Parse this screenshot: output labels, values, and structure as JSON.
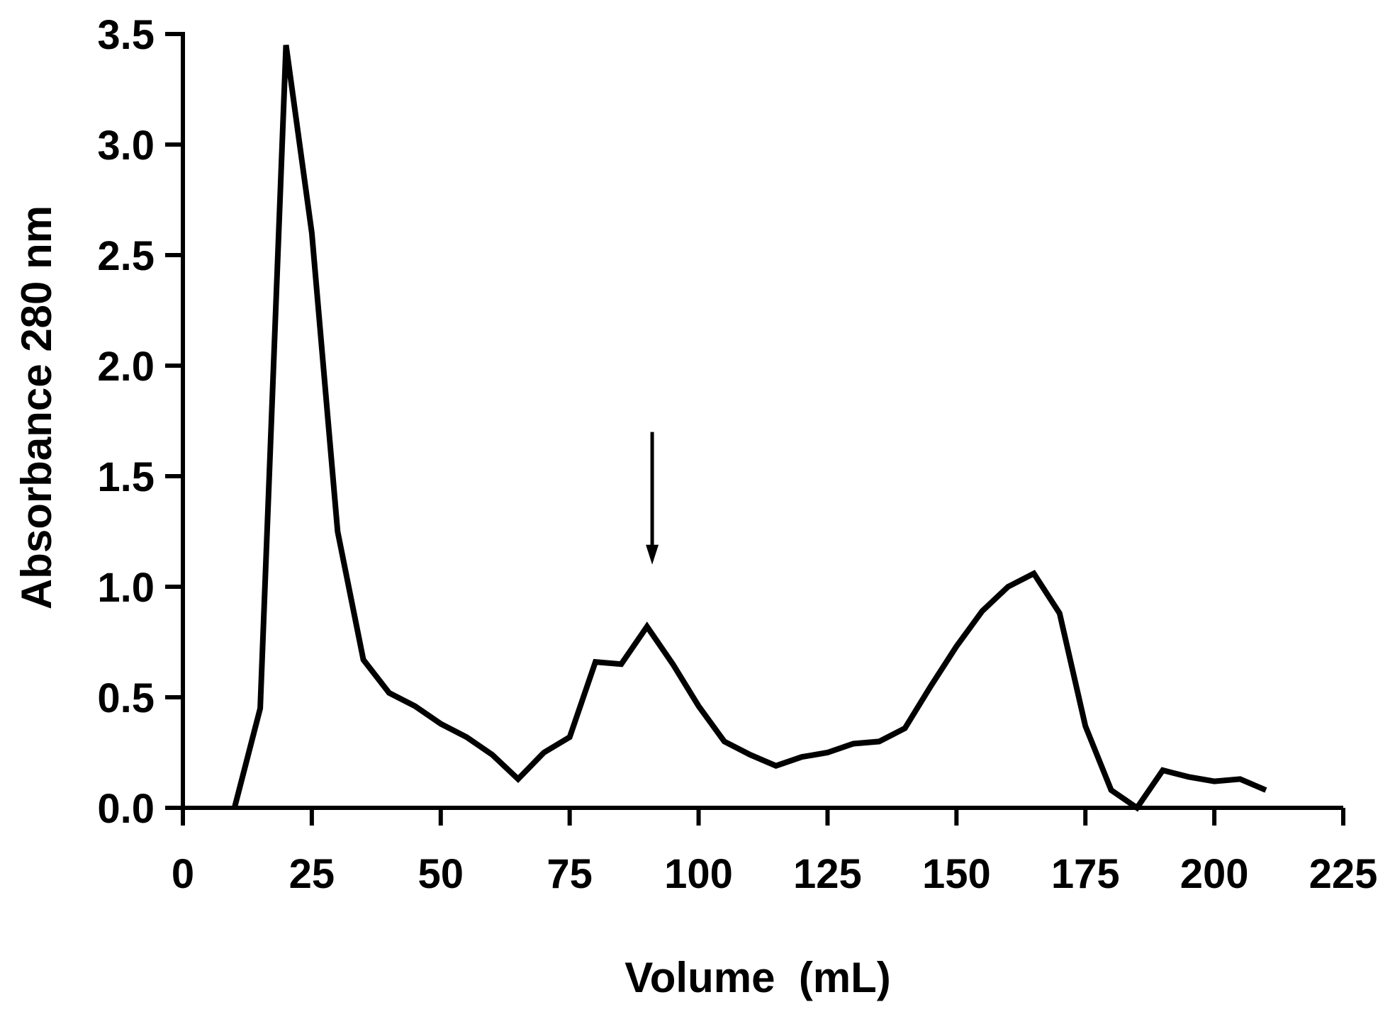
{
  "chart_data": {
    "type": "line",
    "title": "",
    "xlabel": "Volume  (mL)",
    "ylabel": "Absorbance 280 nm",
    "xlim": [
      0,
      225
    ],
    "ylim": [
      0,
      3.5
    ],
    "x_ticks": [
      "0",
      "25",
      "50",
      "75",
      "100",
      "125",
      "150",
      "175",
      "200",
      "225"
    ],
    "y_ticks": [
      "0.0",
      "0.5",
      "1.0",
      "1.5",
      "2.0",
      "2.5",
      "3.0",
      "3.5"
    ],
    "grid": false,
    "legend": "none",
    "series": [
      {
        "color": "#000000",
        "x": [
          10,
          15,
          20,
          25,
          30,
          35,
          40,
          45,
          50,
          55,
          60,
          65,
          70,
          75,
          80,
          85,
          90,
          95,
          100,
          105,
          110,
          115,
          120,
          125,
          130,
          135,
          140,
          145,
          150,
          155,
          160,
          165,
          170,
          175,
          180,
          185,
          190,
          195,
          200,
          205,
          210
        ],
        "y": [
          0.0,
          0.45,
          3.45,
          2.6,
          1.25,
          0.67,
          0.52,
          0.46,
          0.38,
          0.32,
          0.24,
          0.13,
          0.25,
          0.32,
          0.66,
          0.65,
          0.82,
          0.65,
          0.46,
          0.3,
          0.24,
          0.19,
          0.23,
          0.25,
          0.29,
          0.3,
          0.36,
          0.55,
          0.73,
          0.89,
          1.0,
          1.06,
          0.88,
          0.37,
          0.08,
          0.0,
          0.17,
          0.14,
          0.12,
          0.13,
          0.08
        ]
      }
    ],
    "annotations": [
      {
        "type": "arrow",
        "x": 91,
        "y_start": 1.7,
        "y_end": 1.1,
        "color": "#000000"
      }
    ]
  }
}
